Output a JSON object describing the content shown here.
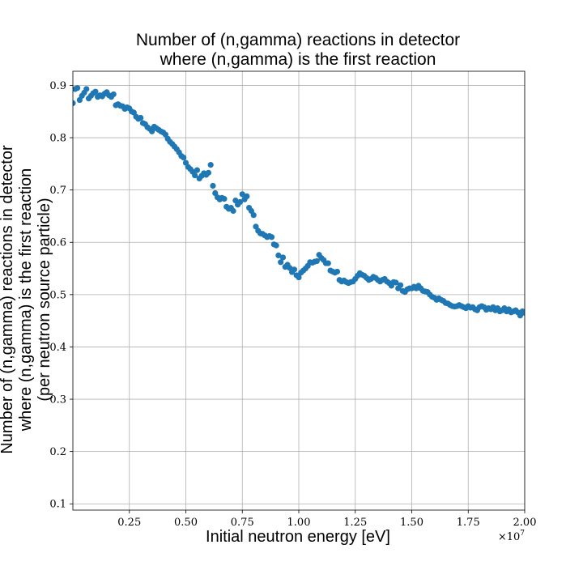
{
  "chart_data": {
    "type": "scatter",
    "title_lines": [
      "Number of (n,gamma) reactions in detector",
      "where (n,gamma) is the first reaction"
    ],
    "xlabel": "Initial neutron energy [eV]",
    "ylabel_lines": [
      "Number of (n,gamma) reactions in detector",
      "where (n,gamma) is the first reaction",
      "(per neutron source particle)"
    ],
    "x_offset_label": "×10",
    "x_offset_exponent": "7",
    "x_scale": 10000000,
    "xlim": [
      0,
      20000000
    ],
    "ylim": [
      0.088,
      0.927
    ],
    "xticks": [
      2500000,
      5000000,
      7500000,
      10000000,
      12500000,
      15000000,
      17500000,
      20000000
    ],
    "xtick_labels": [
      "0.25",
      "0.50",
      "0.75",
      "1.00",
      "1.25",
      "1.50",
      "1.75",
      "2.00"
    ],
    "yticks": [
      0.1,
      0.2,
      0.3,
      0.4,
      0.5,
      0.6,
      0.7,
      0.8,
      0.9
    ],
    "ytick_labels": [
      "0.1",
      "0.2",
      "0.3",
      "0.4",
      "0.5",
      "0.6",
      "0.7",
      "0.8",
      "0.9"
    ],
    "grid": true,
    "marker_color": "#1f77b4",
    "x": [
      0,
      100000,
      200000,
      300000,
      400000,
      500000,
      600000,
      700000,
      800000,
      900000,
      1000000,
      1100000,
      1200000,
      1300000,
      1400000,
      1500000,
      1600000,
      1700000,
      1800000,
      1900000,
      2000000,
      2100000,
      2200000,
      2300000,
      2400000,
      2500000,
      2600000,
      2700000,
      2800000,
      2900000,
      3000000,
      3100000,
      3200000,
      3300000,
      3400000,
      3500000,
      3600000,
      3700000,
      3800000,
      3900000,
      4000000,
      4100000,
      4200000,
      4300000,
      4400000,
      4500000,
      4600000,
      4700000,
      4800000,
      4900000,
      5000000,
      5100000,
      5200000,
      5300000,
      5400000,
      5500000,
      5600000,
      5700000,
      5800000,
      5900000,
      6000000,
      6100000,
      6200000,
      6300000,
      6400000,
      6500000,
      6600000,
      6700000,
      6800000,
      6900000,
      7000000,
      7100000,
      7200000,
      7300000,
      7400000,
      7500000,
      7600000,
      7700000,
      7800000,
      7900000,
      8000000,
      8100000,
      8200000,
      8300000,
      8400000,
      8500000,
      8600000,
      8700000,
      8800000,
      8900000,
      9000000,
      9100000,
      9200000,
      9300000,
      9400000,
      9500000,
      9600000,
      9700000,
      9800000,
      9900000,
      10000000,
      10100000,
      10200000,
      10300000,
      10400000,
      10500000,
      10600000,
      10700000,
      10800000,
      10900000,
      11000000,
      11100000,
      11200000,
      11300000,
      11400000,
      11500000,
      11600000,
      11700000,
      11800000,
      11900000,
      12000000,
      12100000,
      12200000,
      12300000,
      12400000,
      12500000,
      12600000,
      12700000,
      12800000,
      12900000,
      13000000,
      13100000,
      13200000,
      13300000,
      13400000,
      13500000,
      13600000,
      13700000,
      13800000,
      13900000,
      14000000,
      14100000,
      14200000,
      14300000,
      14400000,
      14500000,
      14600000,
      14700000,
      14800000,
      14900000,
      15000000,
      15100000,
      15200000,
      15300000,
      15400000,
      15500000,
      15600000,
      15700000,
      15800000,
      15900000,
      16000000,
      16100000,
      16200000,
      16300000,
      16400000,
      16500000,
      16600000,
      16700000,
      16800000,
      16900000,
      17000000,
      17100000,
      17200000,
      17300000,
      17400000,
      17500000,
      17600000,
      17700000,
      17800000,
      17900000,
      18000000,
      18100000,
      18200000,
      18300000,
      18400000,
      18500000,
      18600000,
      18700000,
      18800000,
      18900000,
      19000000,
      19100000,
      19200000,
      19300000,
      19400000,
      19500000,
      19600000,
      19700000,
      19800000,
      19900000,
      20000000
    ],
    "y": [
      0.866,
      0.893,
      0.895,
      0.872,
      0.88,
      0.886,
      0.893,
      0.875,
      0.88,
      0.885,
      0.888,
      0.878,
      0.881,
      0.879,
      0.884,
      0.887,
      0.881,
      0.878,
      0.883,
      0.862,
      0.864,
      0.861,
      0.86,
      0.855,
      0.858,
      0.856,
      0.85,
      0.848,
      0.84,
      0.836,
      0.838,
      0.828,
      0.826,
      0.82,
      0.817,
      0.812,
      0.821,
      0.818,
      0.815,
      0.812,
      0.81,
      0.806,
      0.798,
      0.792,
      0.788,
      0.783,
      0.778,
      0.772,
      0.765,
      0.762,
      0.752,
      0.744,
      0.74,
      0.735,
      0.728,
      0.738,
      0.722,
      0.727,
      0.732,
      0.729,
      0.733,
      0.748,
      0.708,
      0.694,
      0.686,
      0.682,
      0.685,
      0.683,
      0.668,
      0.664,
      0.666,
      0.66,
      0.68,
      0.672,
      0.677,
      0.692,
      0.682,
      0.688,
      0.666,
      0.66,
      0.652,
      0.63,
      0.622,
      0.617,
      0.616,
      0.613,
      0.61,
      0.612,
      0.61,
      0.596,
      0.594,
      0.575,
      0.562,
      0.571,
      0.553,
      0.557,
      0.551,
      0.543,
      0.548,
      0.537,
      0.533,
      0.542,
      0.546,
      0.55,
      0.555,
      0.562,
      0.561,
      0.563,
      0.564,
      0.576,
      0.57,
      0.566,
      0.56,
      0.56,
      0.546,
      0.544,
      0.542,
      0.544,
      0.528,
      0.525,
      0.527,
      0.524,
      0.522,
      0.524,
      0.525,
      0.53,
      0.536,
      0.541,
      0.538,
      0.536,
      0.532,
      0.528,
      0.53,
      0.534,
      0.532,
      0.528,
      0.525,
      0.528,
      0.53,
      0.525,
      0.522,
      0.517,
      0.524,
      0.523,
      0.512,
      0.518,
      0.507,
      0.505,
      0.51,
      0.512,
      0.512,
      0.515,
      0.512,
      0.517,
      0.512,
      0.507,
      0.506,
      0.505,
      0.5,
      0.496,
      0.494,
      0.49,
      0.493,
      0.49,
      0.488,
      0.484,
      0.483,
      0.48,
      0.478,
      0.477,
      0.478,
      0.48,
      0.478,
      0.476,
      0.474,
      0.478,
      0.475,
      0.476,
      0.472,
      0.47,
      0.476,
      0.478,
      0.476,
      0.471,
      0.474,
      0.472,
      0.476,
      0.47,
      0.474,
      0.468,
      0.47,
      0.474,
      0.468,
      0.472,
      0.466,
      0.468,
      0.47,
      0.466,
      0.46,
      0.468,
      0.465
    ]
  }
}
